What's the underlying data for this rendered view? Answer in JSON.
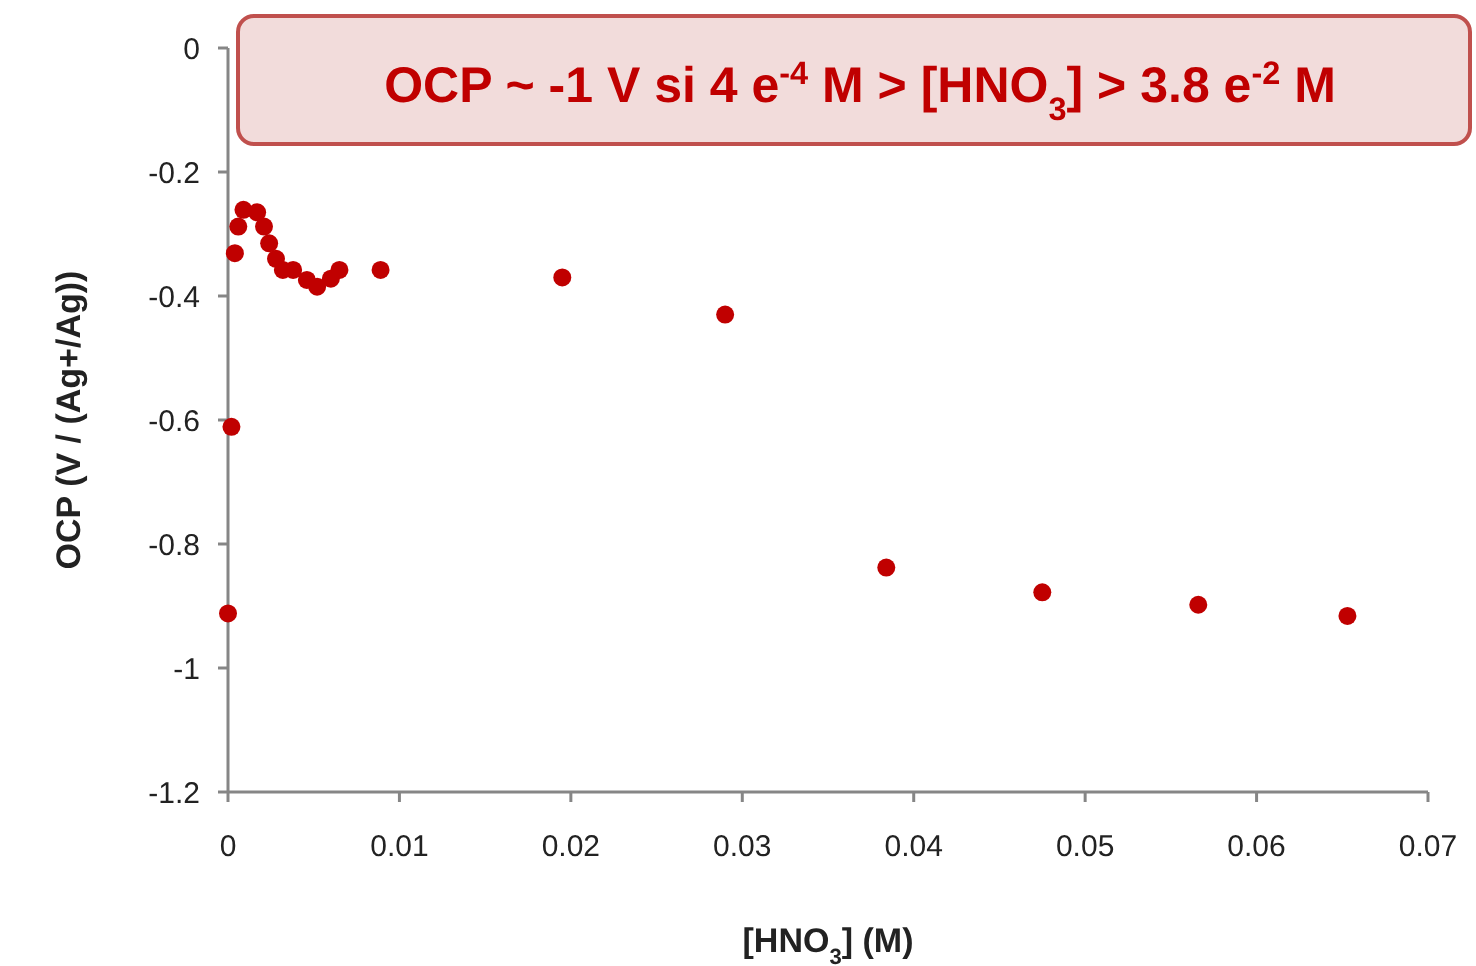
{
  "chart_data": {
    "type": "scatter",
    "xlabel": "[HNO$_{3}$] (M)",
    "ylabel": "OCP (V / (Ag+/Ag))",
    "annotations": [
      "OCP ~ -1 V si 4 e$^{-4}$ M > [HNO$_{3}$] > 3.8 e$^{-2}$ M"
    ],
    "xlim": [
      0,
      0.07
    ],
    "xticks": [
      0,
      0.01,
      0.02,
      0.03,
      0.04,
      0.05,
      0.06,
      0.07
    ],
    "ylim": [
      -1.2,
      0
    ],
    "yticks": [
      -1.2,
      -1,
      -0.8,
      -0.6,
      -0.4,
      -0.2,
      0
    ],
    "grid": false,
    "marker": "circle",
    "series": [
      {
        "color": "#c00000",
        "x": [
          0,
          0.0002,
          0.0004,
          0.0006,
          0.0009,
          0.0017,
          0.0021,
          0.0024,
          0.0028,
          0.0032,
          0.0038,
          0.0046,
          0.0052,
          0.006,
          0.0065,
          0.0089,
          0.0195,
          0.029,
          0.0384,
          0.0475,
          0.0566,
          0.0653
        ],
        "values": [
          -0.912,
          -0.611,
          -0.331,
          -0.288,
          -0.261,
          -0.265,
          -0.288,
          -0.315,
          -0.34,
          -0.358,
          -0.358,
          -0.374,
          -0.385,
          -0.372,
          -0.358,
          -0.358,
          -0.37,
          -0.43,
          -0.838,
          -0.878,
          -0.898,
          -0.916
        ]
      }
    ]
  }
}
